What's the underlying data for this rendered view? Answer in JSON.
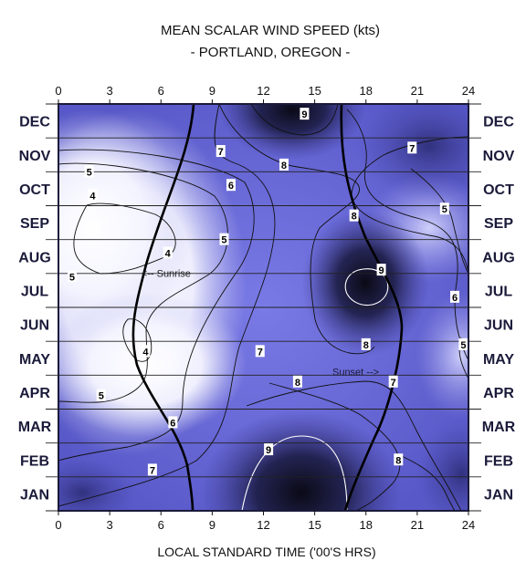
{
  "chart_data": {
    "type": "heatmap",
    "title": "MEAN SCALAR WIND SPEED (kts)",
    "subtitle": "- PORTLAND, OREGON -",
    "xlabel": "LOCAL STANDARD TIME ('00'S HRS)",
    "xlim": [
      0,
      24
    ],
    "x_ticks": [
      "0",
      "3",
      "6",
      "9",
      "12",
      "15",
      "18",
      "21",
      "24"
    ],
    "months": [
      "JAN",
      "FEB",
      "MAR",
      "APR",
      "MAY",
      "JUN",
      "JUL",
      "AUG",
      "SEP",
      "OCT",
      "NOV",
      "DEC"
    ],
    "contour_levels": [
      4,
      5,
      6,
      7,
      8,
      9
    ],
    "contour_labels": [
      {
        "value": "9",
        "x": 14.4,
        "y": 11.7
      },
      {
        "value": "7",
        "x": 9.5,
        "y": 10.6
      },
      {
        "value": "8",
        "x": 13.2,
        "y": 10.2
      },
      {
        "value": "7",
        "x": 20.7,
        "y": 10.7
      },
      {
        "value": "5",
        "x": 1.8,
        "y": 10.0
      },
      {
        "value": "6",
        "x": 10.1,
        "y": 9.6
      },
      {
        "value": "4",
        "x": 2.0,
        "y": 9.3
      },
      {
        "value": "5",
        "x": 22.6,
        "y": 8.9
      },
      {
        "value": "8",
        "x": 17.3,
        "y": 8.7
      },
      {
        "value": "5",
        "x": 9.7,
        "y": 8.0
      },
      {
        "value": "4",
        "x": 6.4,
        "y": 7.6
      },
      {
        "value": "9",
        "x": 18.9,
        "y": 7.1
      },
      {
        "value": "5",
        "x": 0.8,
        "y": 6.9
      },
      {
        "value": "6",
        "x": 23.2,
        "y": 6.3
      },
      {
        "value": "4",
        "x": 5.1,
        "y": 4.7
      },
      {
        "value": "7",
        "x": 11.8,
        "y": 4.7
      },
      {
        "value": "8",
        "x": 18.0,
        "y": 4.9
      },
      {
        "value": "5",
        "x": 23.7,
        "y": 4.9
      },
      {
        "value": "8",
        "x": 14.0,
        "y": 3.8
      },
      {
        "value": "7",
        "x": 19.6,
        "y": 3.8
      },
      {
        "value": "5",
        "x": 2.5,
        "y": 3.4
      },
      {
        "value": "6",
        "x": 6.7,
        "y": 2.6
      },
      {
        "value": "9",
        "x": 12.3,
        "y": 1.8
      },
      {
        "value": "8",
        "x": 19.9,
        "y": 1.5
      },
      {
        "value": "7",
        "x": 5.5,
        "y": 1.2
      }
    ],
    "annotations": [
      {
        "text": "<-- Sunrise",
        "x": 6.3,
        "y": 6.9
      },
      {
        "text": "Sunset -->",
        "x": 17.4,
        "y": 4.0
      }
    ]
  },
  "colors": {
    "low": "#ffffff",
    "mid": "#6f6fe0",
    "high": "#0e0e1e",
    "frame": "#1a1a3a"
  }
}
